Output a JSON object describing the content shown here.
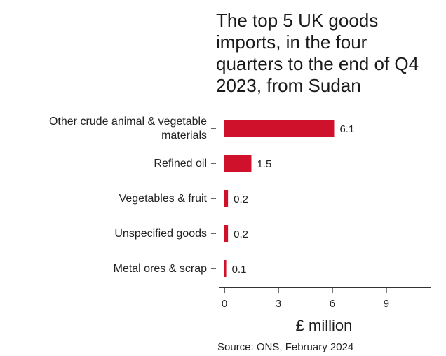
{
  "chart_data": {
    "type": "bar",
    "orientation": "horizontal",
    "title": "The top 5 UK goods imports, in the four quarters to the end of Q4 2023, from Sudan",
    "title_lines": [
      "The top 5 UK goods",
      "imports, in the four",
      "quarters to the end of Q4",
      "2023, from Sudan"
    ],
    "categories": [
      "Other crude animal & vegetable materials",
      "Refined oil",
      "Vegetables & fruit",
      "Unspecified goods",
      "Metal ores & scrap"
    ],
    "category_lines": [
      [
        "Other crude animal & vegetable",
        "materials"
      ],
      [
        "Refined oil"
      ],
      [
        "Vegetables & fruit"
      ],
      [
        "Unspecified goods"
      ],
      [
        "Metal ores & scrap"
      ]
    ],
    "values": [
      6.1,
      1.5,
      0.2,
      0.2,
      0.1
    ],
    "value_labels": [
      "6.1",
      "1.5",
      "0.2",
      "0.2",
      "0.1"
    ],
    "xlabel": "£ million",
    "ylabel": "",
    "xlim": [
      0,
      11.5
    ],
    "xticks": [
      0,
      3,
      6,
      9
    ],
    "xtick_labels": [
      "0",
      "3",
      "6",
      "9"
    ],
    "grid": false,
    "bar_color": "#d0112b",
    "source": "Source: ONS, February 2024"
  }
}
